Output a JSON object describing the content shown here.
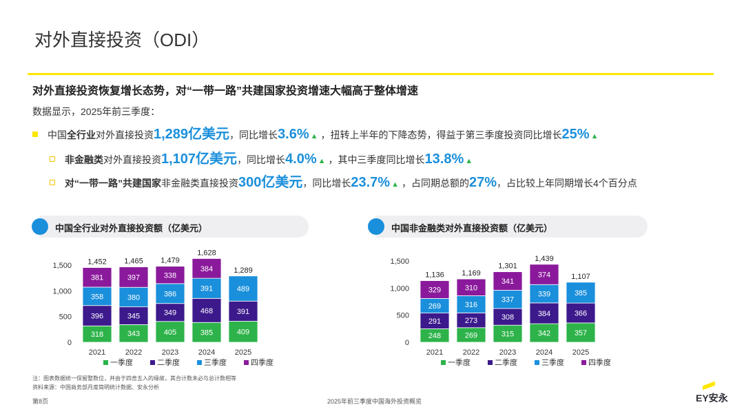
{
  "title": "对外直接投资（ODI）",
  "headline": "对外直接投资恢复增长态势，对“一带一路”共建国家投资增速大幅高于整体增速",
  "intro": "数据显示，2025年前三季度：",
  "bullet1": {
    "pre": "中国",
    "pre_bold": "全行业",
    "mid": "对外直接投资",
    "big1": "1,289亿美元",
    "t2": "，同比增长",
    "big2": "3.6%",
    "t3": "，扭转上半年的下降态势，得益于第三季度投资同比增长",
    "big3": "25%"
  },
  "bullet2": {
    "bold": "非金融类",
    "t1": "对外直接投资",
    "big1": "1,107亿美元",
    "t2": "，同比增长",
    "big2": "4.0%",
    "t3": "，其中三季度同比增长",
    "big3": "13.8%"
  },
  "bullet3": {
    "bold": "对“一带一路”共建国家",
    "t1": "非金融类直接投资",
    "big1": "300亿美元",
    "t2": "，同比增长",
    "big2": "23.7%",
    "t3": "，占同期总额的",
    "big3": "27%",
    "t4": "，占比较上年同期增长4个百分点"
  },
  "panel1_title": "中国全行业对外直接投资额（亿美元）",
  "panel2_title": "中国非金融类对外直接投资额（亿美元）",
  "colors": {
    "q1": "#2db34a",
    "q2": "#3c1a8c",
    "q3": "#1a8fdb",
    "q4": "#8a1a9b"
  },
  "chart_data": [
    {
      "type": "bar",
      "stacked": true,
      "title": "中国全行业对外直接投资额（亿美元）",
      "categories": [
        "2021",
        "2022",
        "2023",
        "2024",
        "2025"
      ],
      "series": [
        {
          "name": "一季度",
          "values": [
            318,
            343,
            405,
            385,
            409
          ]
        },
        {
          "name": "二季度",
          "values": [
            396,
            345,
            349,
            468,
            391
          ]
        },
        {
          "name": "三季度",
          "values": [
            358,
            380,
            386,
            391,
            489
          ]
        },
        {
          "name": "四季度",
          "values": [
            381,
            397,
            338,
            384,
            null
          ]
        }
      ],
      "totals": [
        "1,452",
        "1,465",
        "1,479",
        "1,628",
        "1,289"
      ],
      "yticks": [
        "0",
        "500",
        "1,000",
        "1,500"
      ],
      "ylim": [
        0,
        1500
      ]
    },
    {
      "type": "bar",
      "stacked": true,
      "title": "中国非金融类对外直接投资额（亿美元）",
      "categories": [
        "2021",
        "2022",
        "2023",
        "2024",
        "2025"
      ],
      "series": [
        {
          "name": "一季度",
          "values": [
            248,
            269,
            315,
            342,
            357
          ]
        },
        {
          "name": "二季度",
          "values": [
            291,
            273,
            308,
            384,
            366
          ]
        },
        {
          "name": "三季度",
          "values": [
            269,
            316,
            337,
            339,
            385
          ]
        },
        {
          "name": "四季度",
          "values": [
            329,
            310,
            341,
            374,
            null
          ]
        }
      ],
      "totals": [
        "1,136",
        "1,169",
        "1,301",
        "1,439",
        "1,107"
      ],
      "yticks": [
        "0",
        "500",
        "1,000",
        "1,500"
      ],
      "ylim": [
        0,
        1500
      ]
    }
  ],
  "note_line1": "注：图表数据统一保留整数位，并由于四舍五入的缘故，其合计数未必与总计数相等",
  "note_line2": "资料来源：中国商务部月度简明统计数据、安永分析",
  "page_number": "第8页",
  "footer_title": "2025年前三季度中国海外投资概览",
  "logo_text": "EY安永"
}
